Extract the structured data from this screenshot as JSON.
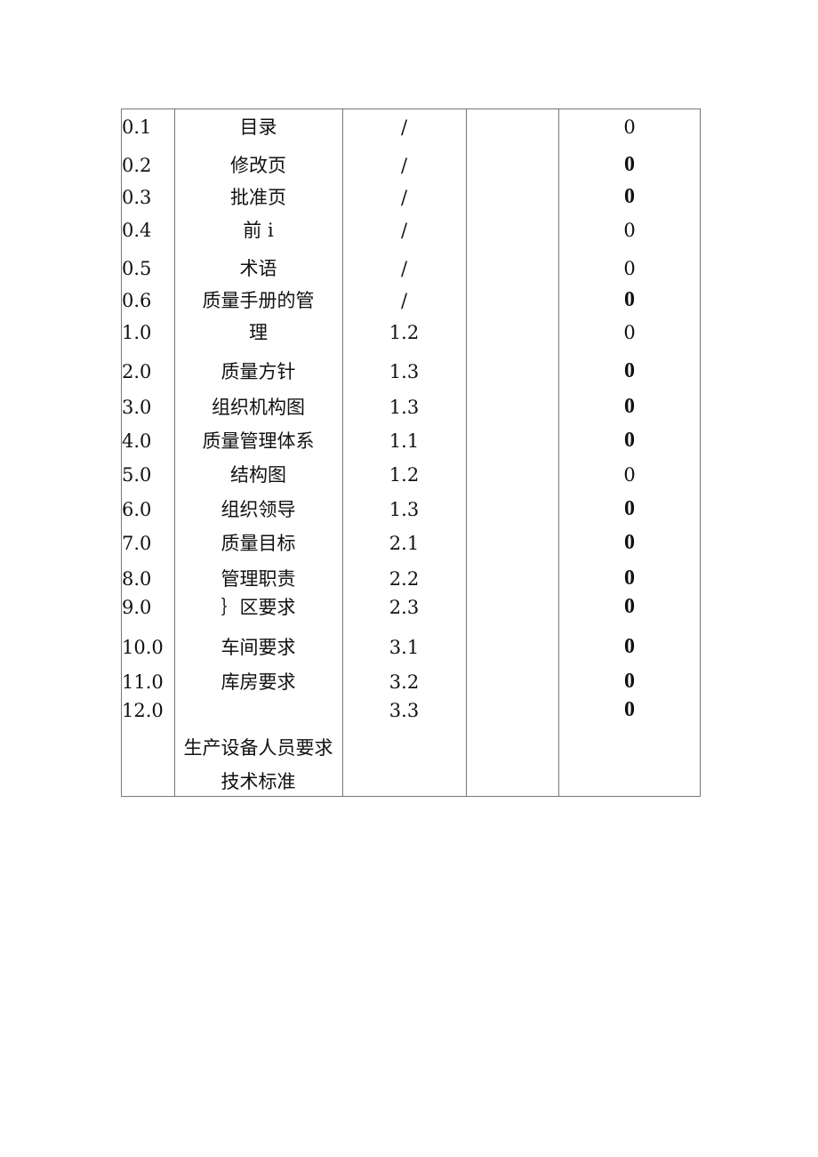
{
  "rows": [
    {
      "no": "0.1",
      "title": "目录",
      "section": "/",
      "rev": "0",
      "bold": false
    },
    {
      "no": "0.2",
      "title": "修改页",
      "section": "/",
      "rev": "0",
      "bold": true
    },
    {
      "no": "0.3",
      "title": "批准页",
      "section": "/",
      "rev": "0",
      "bold": true
    },
    {
      "no": "0.4",
      "title": "前 i",
      "section": "/",
      "rev": "0",
      "bold": false
    },
    {
      "no": "0.5",
      "title": "术语",
      "section": "/",
      "rev": "0",
      "bold": false
    },
    {
      "no": "0.6",
      "title": "质量手册的管",
      "section": "/",
      "rev": "0",
      "bold": true
    },
    {
      "no": "1.0",
      "title": "理",
      "section": "1.2",
      "rev": "0",
      "bold": false
    },
    {
      "no": "2.0",
      "title": "质量方针",
      "section": "1.3",
      "rev": "0",
      "bold": true
    },
    {
      "no": "3.0",
      "title": "组织机构图",
      "section": "1.3",
      "rev": "0",
      "bold": true
    },
    {
      "no": "4.0",
      "title": "质量管理体系",
      "section": "1.1",
      "rev": "0",
      "bold": true
    },
    {
      "no": "5.0",
      "title": "结构图",
      "section": "1.2",
      "rev": "0",
      "bold": false
    },
    {
      "no": "6.0",
      "title": "组织领导",
      "section": "1.3",
      "rev": "0",
      "bold": true
    },
    {
      "no": "7.0",
      "title": "质量目标",
      "section": "2.1",
      "rev": "0",
      "bold": true
    },
    {
      "no": "8.0",
      "title": "管理职责",
      "section": "2.2",
      "rev": "0",
      "bold": true
    },
    {
      "no": "9.0",
      "title": "｝区要求",
      "section": "2.3",
      "rev": "0",
      "bold": true
    },
    {
      "no": "10.0",
      "title": "车间要求",
      "section": "3.1",
      "rev": "0",
      "bold": true
    },
    {
      "no": "11.0",
      "title": "库房要求",
      "section": "3.2",
      "rev": "0",
      "bold": true
    },
    {
      "no": "12.0",
      "title": "",
      "section": "3.3",
      "rev": "0",
      "bold": true
    }
  ],
  "extra_titles": [
    "生产设备人员要求",
    "技术标准"
  ]
}
